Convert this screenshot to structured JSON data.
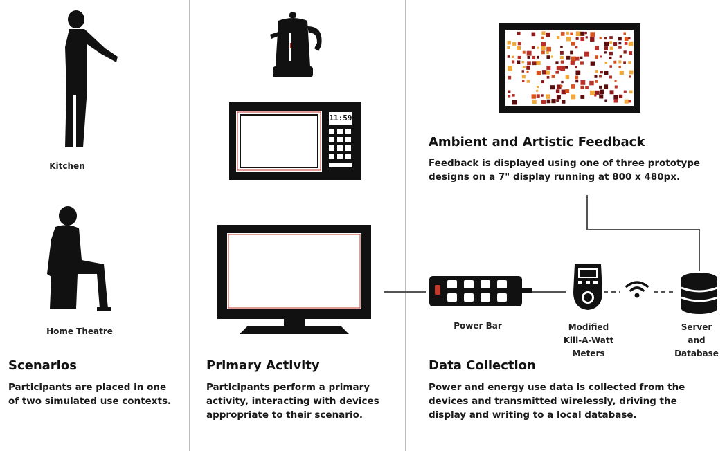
{
  "scenarios": {
    "kitchen_label": "Kitchen",
    "theatre_label": "Home Theatre",
    "heading": "Scenarios",
    "description_lines": [
      "Participants are placed in one",
      "of two simulated use contexts."
    ]
  },
  "primary_activity": {
    "heading": "Primary Activity",
    "description_lines": [
      "Participants perform a primary",
      "activity, interacting with devices",
      "appropriate to their scenario."
    ],
    "microwave_clock": "11:59"
  },
  "feedback": {
    "heading": "Ambient and Artistic Feedback",
    "description_lines": [
      "Feedback is displayed using one of three prototype",
      "designs on a 7\" display running at 800 x 480px."
    ]
  },
  "data_collection": {
    "power_bar_label": "Power Bar",
    "meter_label_lines": [
      "Modified",
      "Kill-A-Watt",
      "Meters"
    ],
    "server_label_lines": [
      "Server",
      "and",
      "Database"
    ],
    "heading": "Data Collection",
    "description_lines": [
      "Power and energy use data is collected from the",
      "devices and transmitted wirelessly, driving the",
      "display and writing to a local database."
    ]
  },
  "colors": {
    "silhouette": "#111111",
    "accent_red": "#c0392b",
    "mosaic": [
      "#8b1a1a",
      "#d9531e",
      "#f2a93b",
      "#5a0d0d",
      "#b8322a"
    ]
  }
}
